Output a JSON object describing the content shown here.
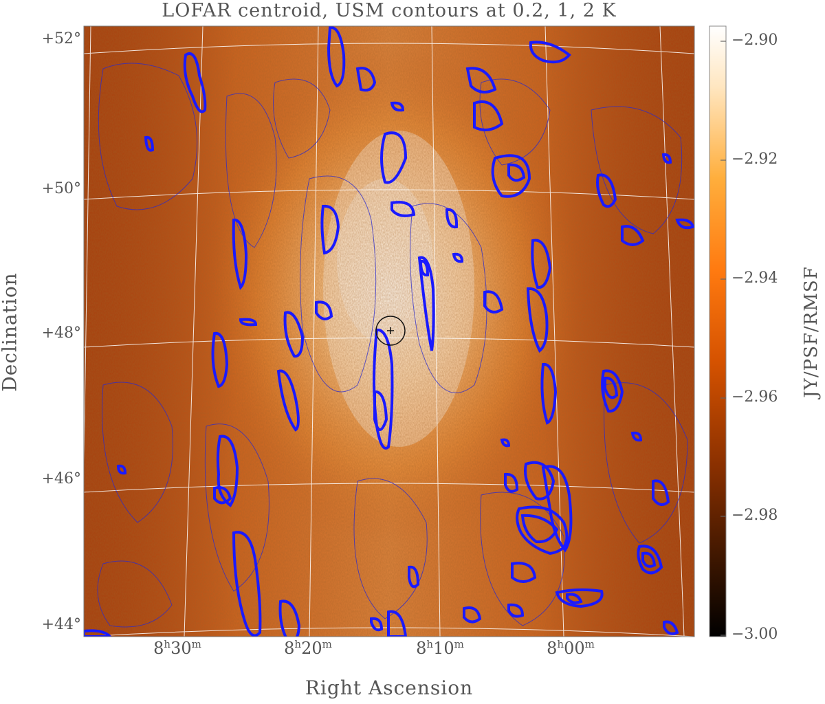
{
  "title": "LOFAR centroid, USM contours at 0.2, 1, 2 K",
  "xlabel": "Right Ascension",
  "ylabel": "Declination",
  "colorbar": {
    "label": "JY/PSF/RMSF",
    "ticks": [
      "−2.90",
      "−2.92",
      "−2.94",
      "−2.96",
      "−2.98",
      "−3.00"
    ]
  },
  "dec_ticks": [
    "+52°",
    "+50°",
    "+48°",
    "+46°",
    "+44°"
  ],
  "ra_ticks": [
    {
      "h": "8",
      "m": "30"
    },
    {
      "h": "8",
      "m": "20"
    },
    {
      "h": "8",
      "m": "10"
    },
    {
      "h": "8",
      "m": "00"
    }
  ],
  "ra_units": {
    "h": "h",
    "m": "m"
  },
  "contour_color": "#1a1aff",
  "colormap": [
    "#000000",
    "#3a1500",
    "#8a3000",
    "#d05000",
    "#ff7a10",
    "#ffb040",
    "#ffe8c0",
    "#ffffff"
  ]
}
